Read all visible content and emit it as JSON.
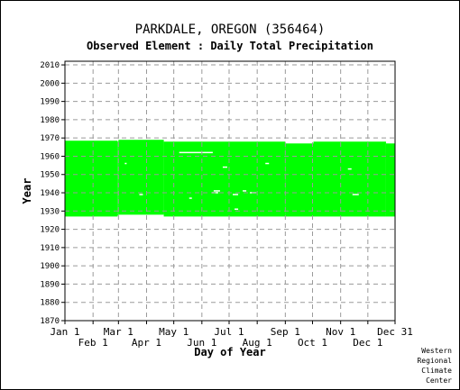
{
  "chart_data": {
    "type": "area",
    "title": "PARKDALE, OREGON   (356464)",
    "subtitle": "Observed Element : Daily Total Precipitation",
    "xlabel": "Day of Year",
    "ylabel": "Year",
    "xlim": [
      1,
      365
    ],
    "ylim": [
      1870,
      2012
    ],
    "grid": true,
    "x_ticks_upper": [
      {
        "label": "Jan 1",
        "day": 1
      },
      {
        "label": "Mar 1",
        "day": 60
      },
      {
        "label": "May 1",
        "day": 121
      },
      {
        "label": "Jul 1",
        "day": 182
      },
      {
        "label": "Sep 1",
        "day": 244
      },
      {
        "label": "Nov 1",
        "day": 305
      },
      {
        "label": "Dec 31",
        "day": 365
      }
    ],
    "x_ticks_lower": [
      {
        "label": "Feb 1",
        "day": 32
      },
      {
        "label": "Apr 1",
        "day": 91
      },
      {
        "label": "Jun 1",
        "day": 152
      },
      {
        "label": "Aug 1",
        "day": 213
      },
      {
        "label": "Oct 1",
        "day": 274
      },
      {
        "label": "Dec 1",
        "day": 335
      }
    ],
    "y_ticks": [
      1870,
      1880,
      1890,
      1900,
      1910,
      1920,
      1930,
      1940,
      1950,
      1960,
      1970,
      1980,
      1990,
      2000,
      2010
    ],
    "data_color": "#00ff00",
    "coverage_segments": [
      {
        "day_start": 1,
        "day_end": 59,
        "year_start": 1927,
        "year_end": 1968.5
      },
      {
        "day_start": 59,
        "day_end": 60,
        "year_start": 1927.5,
        "year_end": 1968
      },
      {
        "day_start": 60,
        "day_end": 110,
        "year_start": 1928,
        "year_end": 1969
      },
      {
        "day_start": 110,
        "day_end": 244,
        "year_start": 1927,
        "year_end": 1968
      },
      {
        "day_start": 244,
        "day_end": 275,
        "year_start": 1927,
        "year_end": 1967
      },
      {
        "day_start": 275,
        "day_end": 355,
        "year_start": 1927,
        "year_end": 1968
      },
      {
        "day_start": 355,
        "day_end": 365,
        "year_start": 1927,
        "year_end": 1967
      }
    ],
    "missing_days": [
      {
        "day_start": 60,
        "day_end": 64,
        "year": 1927
      },
      {
        "day_start": 127,
        "day_end": 164,
        "year": 1962
      },
      {
        "day_start": 83,
        "day_end": 87,
        "year": 1939
      },
      {
        "day_start": 165,
        "day_end": 172,
        "year": 1941
      },
      {
        "day_start": 163,
        "day_end": 170,
        "year": 1940
      },
      {
        "day_start": 186,
        "day_end": 192,
        "year": 1939
      },
      {
        "day_start": 197,
        "day_end": 201,
        "year": 1941
      },
      {
        "day_start": 188,
        "day_end": 192,
        "year": 1931
      },
      {
        "day_start": 205,
        "day_end": 212,
        "year": 1940
      },
      {
        "day_start": 175,
        "day_end": 180,
        "year": 1954
      },
      {
        "day_start": 138,
        "day_end": 141,
        "year": 1937
      },
      {
        "day_start": 222,
        "day_end": 226,
        "year": 1956
      },
      {
        "day_start": 313,
        "day_end": 317,
        "year": 1953
      },
      {
        "day_start": 318,
        "day_end": 325,
        "year": 1939
      },
      {
        "day_start": 67,
        "day_end": 69,
        "year": 1956
      }
    ]
  },
  "credit": [
    "Western",
    "Regional",
    "Climate",
    "Center"
  ]
}
